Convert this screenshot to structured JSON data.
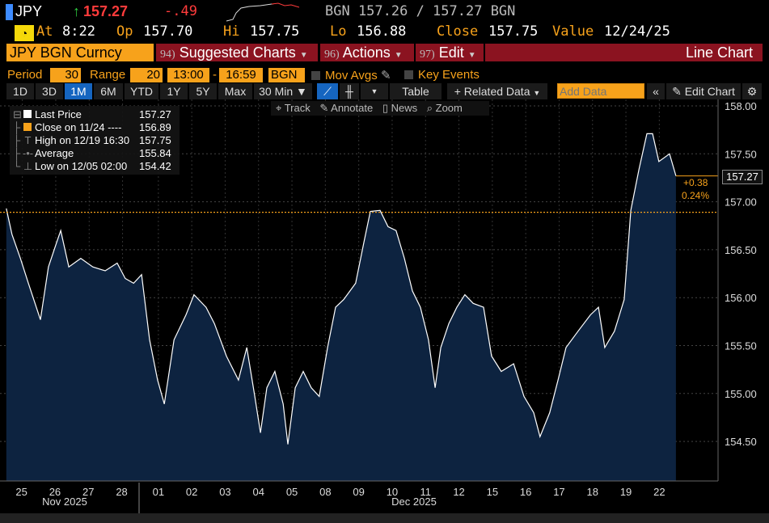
{
  "header": {
    "ticker": "JPY",
    "last": "157.27",
    "change": "-.49",
    "source_quote": "BGN 157.26 / 157.27 BGN",
    "at_label": "At",
    "at_time": "8:22",
    "op_label": "Op",
    "op": "157.70",
    "hi_label": "Hi",
    "hi": "157.75",
    "lo_label": "Lo",
    "lo": "156.88",
    "close_label": "Close",
    "close": "157.75",
    "value_label": "Value",
    "value_date": "12/24/25"
  },
  "menu": {
    "security": "JPY BGN Curncy",
    "suggested_num": "94)",
    "suggested": "Suggested Charts",
    "actions_num": "96)",
    "actions": "Actions",
    "edit_num": "97)",
    "edit": "Edit",
    "chart_type": "Line Chart"
  },
  "settings": {
    "period_label": "Period",
    "period": "30",
    "range_label": "Range",
    "range": "20",
    "start": "13:00",
    "sep": "-",
    "end": "16:59",
    "source": "BGN",
    "mov_avgs": "Mov Avgs",
    "key_events": "Key Events"
  },
  "toolbar": {
    "ranges": [
      "1D",
      "3D",
      "1M",
      "6M",
      "YTD",
      "1Y",
      "5Y",
      "Max"
    ],
    "interval": "30 Min ▼",
    "table": "Table",
    "related": "Related Data",
    "add_data_placeholder": "Add Data",
    "edit_chart": "Edit Chart"
  },
  "chart_tools": {
    "track": "Track",
    "annotate": "Annotate",
    "news": "News",
    "zoom": "Zoom"
  },
  "legend": [
    {
      "label": "Last Price",
      "value": "157.27"
    },
    {
      "label": "Close on 11/24 ----",
      "value": "156.89"
    },
    {
      "label": "High on 12/19 16:30",
      "value": "157.75"
    },
    {
      "label": "Average",
      "value": "155.84"
    },
    {
      "label": "Low on 12/05 02:00",
      "value": "154.42"
    }
  ],
  "last_tag": {
    "price": "157.27",
    "change": "+0.38",
    "pct": "0.24%"
  },
  "colors": {
    "orange": "#f7a21b",
    "fill": "#0d2340",
    "accent_red": "#8b1320"
  },
  "chart_data": {
    "type": "area",
    "title": "JPY BGN Curncy",
    "ylabel": "",
    "xlabel": "",
    "ylim": [
      154.2,
      158.05
    ],
    "yticks": [
      "154.50",
      "155.00",
      "155.50",
      "156.00",
      "156.50",
      "157.00",
      "157.50",
      "158.00"
    ],
    "reference_line": 156.89,
    "x_labels": [
      "25",
      "26",
      "27",
      "28",
      "01",
      "02",
      "03",
      "04",
      "05",
      "08",
      "09",
      "10",
      "11",
      "12",
      "15",
      "16",
      "17",
      "18",
      "19",
      "22"
    ],
    "months": [
      "Nov 2025",
      "Dec 2025"
    ],
    "points": [
      [
        0.02,
        156.93
      ],
      [
        0.19,
        156.66
      ],
      [
        0.44,
        156.41
      ],
      [
        0.68,
        156.15
      ],
      [
        1.04,
        155.77
      ],
      [
        1.28,
        156.32
      ],
      [
        1.53,
        156.58
      ],
      [
        1.65,
        156.7
      ],
      [
        1.89,
        156.32
      ],
      [
        2.25,
        156.41
      ],
      [
        2.61,
        156.32
      ],
      [
        2.98,
        156.28
      ],
      [
        3.34,
        156.36
      ],
      [
        3.58,
        156.2
      ],
      [
        3.83,
        156.15
      ],
      [
        4.07,
        156.24
      ],
      [
        4.31,
        155.56
      ],
      [
        4.55,
        155.14
      ],
      [
        4.75,
        154.89
      ],
      [
        5.04,
        155.56
      ],
      [
        5.4,
        155.82
      ],
      [
        5.64,
        156.03
      ],
      [
        6.0,
        155.9
      ],
      [
        6.25,
        155.73
      ],
      [
        6.61,
        155.39
      ],
      [
        6.97,
        155.14
      ],
      [
        7.22,
        155.48
      ],
      [
        7.46,
        154.97
      ],
      [
        7.63,
        154.59
      ],
      [
        7.82,
        155.06
      ],
      [
        8.06,
        155.23
      ],
      [
        8.31,
        154.89
      ],
      [
        8.45,
        154.47
      ],
      [
        8.67,
        155.06
      ],
      [
        8.91,
        155.23
      ],
      [
        9.15,
        155.06
      ],
      [
        9.39,
        154.97
      ],
      [
        9.64,
        155.48
      ],
      [
        9.88,
        155.9
      ],
      [
        10.12,
        155.98
      ],
      [
        10.48,
        156.15
      ],
      [
        10.73,
        156.58
      ],
      [
        10.92,
        156.9
      ],
      [
        11.21,
        156.91
      ],
      [
        11.45,
        156.74
      ],
      [
        11.69,
        156.7
      ],
      [
        11.94,
        156.41
      ],
      [
        12.18,
        156.07
      ],
      [
        12.42,
        155.9
      ],
      [
        12.66,
        155.56
      ],
      [
        12.86,
        155.06
      ],
      [
        13.03,
        155.48
      ],
      [
        13.27,
        155.73
      ],
      [
        13.51,
        155.9
      ],
      [
        13.75,
        156.03
      ],
      [
        14.0,
        155.94
      ],
      [
        14.31,
        155.9
      ],
      [
        14.55,
        155.39
      ],
      [
        14.84,
        155.23
      ],
      [
        15.21,
        155.31
      ],
      [
        15.52,
        154.97
      ],
      [
        15.81,
        154.8
      ],
      [
        16.0,
        154.55
      ],
      [
        16.29,
        154.8
      ],
      [
        16.54,
        155.14
      ],
      [
        16.78,
        155.48
      ],
      [
        17.14,
        155.65
      ],
      [
        17.51,
        155.82
      ],
      [
        17.75,
        155.9
      ],
      [
        17.94,
        155.48
      ],
      [
        18.23,
        155.65
      ],
      [
        18.52,
        155.98
      ],
      [
        18.72,
        156.91
      ],
      [
        18.96,
        157.33
      ],
      [
        19.2,
        157.71
      ],
      [
        19.37,
        157.71
      ],
      [
        19.56,
        157.42
      ],
      [
        19.88,
        157.5
      ],
      [
        20.07,
        157.27
      ]
    ]
  }
}
